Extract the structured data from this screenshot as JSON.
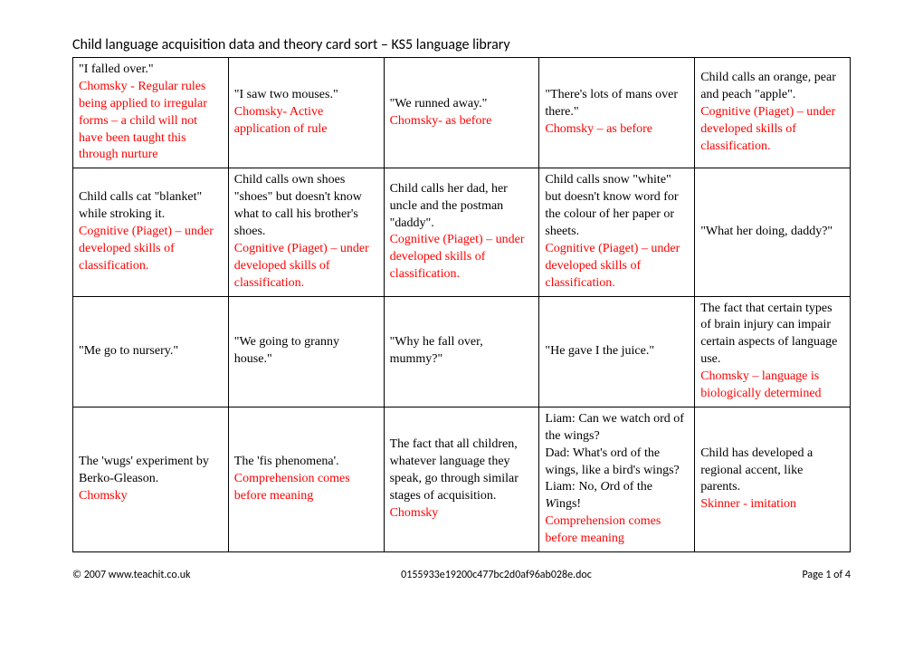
{
  "title": "Child language acquisition data and theory card sort – KS5 language library",
  "footer": {
    "left": "© 2007 www.teachit.co.uk",
    "center": "0155933e19200c477bc2d0af96ab028e.doc",
    "right": "Page 1 of 4"
  },
  "rows": [
    [
      {
        "example": "\"I falled over.\"",
        "theory": "Chomsky - Regular rules being applied to irregular forms – a child will not have been taught this through nurture"
      },
      {
        "example": "\"I saw two mouses.\"",
        "theory": "Chomsky- Active application of rule"
      },
      {
        "example": "\"We runned away.\"",
        "theory": "Chomsky- as before"
      },
      {
        "example": "\"There's lots of mans over there.\"",
        "theory": "Chomsky – as before"
      },
      {
        "example": "Child calls an orange, pear and peach \"apple\".",
        "theory": "Cognitive (Piaget) – under developed skills of classification."
      }
    ],
    [
      {
        "example": "Child calls cat \"blanket\" while stroking it.",
        "theory": "Cognitive (Piaget) – under developed skills of classification."
      },
      {
        "example": "Child calls own shoes \"shoes\" but doesn't know what to call his brother's shoes.",
        "theory": "Cognitive (Piaget) – under developed skills of classification."
      },
      {
        "example": "Child calls her dad, her uncle and the postman \"daddy\".",
        "theory": "Cognitive (Piaget) – under developed skills of classification."
      },
      {
        "example": "Child calls snow \"white\" but doesn't know word for the colour of her paper or sheets.",
        "theory": "Cognitive (Piaget) – under developed skills of classification."
      },
      {
        "example": "\"What her doing, daddy?\"",
        "theory": ""
      }
    ],
    [
      {
        "example": "\"Me go to nursery.\"",
        "theory": ""
      },
      {
        "example": "\"We going to granny house.\"",
        "theory": ""
      },
      {
        "example": "\"Why he fall over, mummy?\"",
        "theory": ""
      },
      {
        "example": "\"He gave I the juice.\"",
        "theory": ""
      },
      {
        "example": "The fact that certain types of brain injury can impair certain aspects of language use.",
        "theory": "Chomsky – language is biologically determined"
      }
    ],
    [
      {
        "example": "The 'wugs' experiment by Berko-Gleason.",
        "theory": "Chomsky"
      },
      {
        "example": "The 'fis phenomena'.",
        "theory": "Comprehension comes before meaning"
      },
      {
        "example": "The fact that all children, whatever language they speak, go through similar stages of acquisition.",
        "theory": "Chomsky"
      },
      {
        "example_html": "Liam: Can we watch ord of the wings?<br>Dad: What's ord of the wings, like a bird's wings?<br>Liam: No, <span class=\"italic\">O</span>rd of the <span class=\"italic\">W</span>ings!",
        "theory": "Comprehension comes before meaning"
      },
      {
        "example": "Child has developed a regional accent, like parents.",
        "theory": "Skinner - imitation"
      }
    ]
  ]
}
